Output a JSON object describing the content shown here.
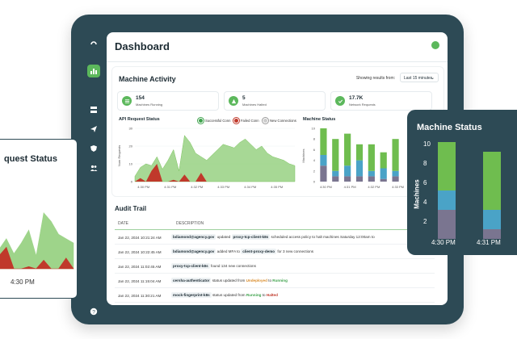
{
  "dashboard": {
    "title": "Dashboard",
    "nav_icons": [
      "logo-icon",
      "chart-icon",
      "server-icon",
      "send-icon",
      "shield-icon",
      "users-icon",
      "help-icon"
    ]
  },
  "machine_activity": {
    "title": "Machine Activity",
    "showing_label": "Showing results from:",
    "time_range": "Last 15 minutes",
    "stats": [
      {
        "value": "154",
        "label": "Machines Running",
        "icon": "list-icon"
      },
      {
        "value": "5",
        "label": "Machines Halted",
        "icon": "warning-icon"
      },
      {
        "value": "17.7K",
        "label": "Network Requests",
        "icon": "check-icon"
      }
    ]
  },
  "api_status": {
    "title": "API Request Status",
    "legend": [
      "Successful Conn",
      "Failed Conn",
      "New Connections"
    ],
    "ylabel": "Num Requests",
    "yticks": [
      "30",
      "20",
      "10",
      "0"
    ],
    "xticks": [
      "4:30 PM",
      "4:31 PM",
      "4:32 PM",
      "4:33 PM",
      "4:34 PM",
      "4:35 PM"
    ]
  },
  "machine_status_small": {
    "title": "Machine Status",
    "ylabel": "Machines",
    "yticks": [
      "10",
      "8",
      "6",
      "4",
      "2",
      "0"
    ],
    "xticks": [
      "4:30 PM",
      "4:31 PM",
      "4:32 PM",
      "4:33 PM"
    ]
  },
  "audit": {
    "title": "Audit Trail",
    "headers": {
      "date": "DATE",
      "description": "DESCRIPTION"
    },
    "rows": [
      {
        "date": "Jan 22, 2024 10:21:24 AM",
        "a": "bdiamond@agency.gov",
        "b": " updated ",
        "c": "proxy-tcp-client-k8s",
        "d": " scheduled access policy to halt machines Saturday 12:00am to"
      },
      {
        "date": "Jan 22, 2024 10:22:45 AM",
        "a": "bdiamond@agency.gov",
        "b": " added MFA to ",
        "c": "client-proxy-demo",
        "d": " for 3 new connections"
      },
      {
        "date": "Jan 22, 2024 11:02:45 AM",
        "a": "proxy-tcp-client-k8s",
        "b": " found 134 new connections",
        "c": "",
        "d": ""
      },
      {
        "date": "Jan 22, 2024 11:15:04 AM",
        "a": "cersha-authenticator",
        "b": " status updated from ",
        "c": "Undeployed",
        "d": " to ",
        "e": "Running"
      },
      {
        "date": "Jan 22, 2024 11:30:21 AM",
        "a": "mock-fingerprint-k8s",
        "b": " status updated from ",
        "c": "Running",
        "d": " to ",
        "e": "Halted"
      }
    ]
  },
  "float_left": {
    "title": "quest Status",
    "xtick": "4:30 PM"
  },
  "float_right": {
    "title": "Machine Status",
    "ylabel": "Machines",
    "yticks": [
      "10",
      "8",
      "6",
      "4",
      "2"
    ],
    "xticks": [
      "4:30 PM",
      "4:31 PM"
    ]
  },
  "chart_data": [
    {
      "type": "area",
      "title": "API Request Status",
      "ylabel": "Num Requests",
      "ylim": [
        0,
        30
      ],
      "series": [
        {
          "name": "Successful Conn",
          "color": "#9ed48a",
          "values": [
            3,
            8,
            10,
            9,
            14,
            7,
            12,
            18,
            6,
            26,
            22,
            16,
            14,
            12,
            15,
            18,
            21,
            20,
            19,
            22,
            24,
            21,
            18,
            20,
            16,
            14,
            13,
            12,
            10,
            9
          ]
        },
        {
          "name": "Failed Conn",
          "color": "#c0392b",
          "values": [
            0,
            2,
            0,
            6,
            10,
            0,
            0,
            1,
            0,
            4,
            0,
            0,
            5,
            0,
            0,
            0,
            0,
            0,
            0,
            0,
            0,
            0,
            0,
            0,
            0,
            0,
            0,
            0,
            0,
            0
          ]
        }
      ]
    },
    {
      "type": "bar",
      "title": "Machine Status",
      "ylabel": "Machines",
      "ylim": [
        0,
        10
      ],
      "categories": [
        "4:30 PM",
        "",
        "4:31 PM",
        "",
        "4:32 PM",
        "",
        "4:33 PM"
      ],
      "series": [
        {
          "color": "#7a7590",
          "values": [
            3,
            1,
            1,
            1,
            1,
            0.5,
            1
          ]
        },
        {
          "color": "#4aa3c7",
          "values": [
            2,
            1,
            2,
            3,
            1,
            2,
            1
          ]
        },
        {
          "color": "#6fbd4f",
          "values": [
            5,
            6,
            6,
            3,
            5,
            3,
            6
          ]
        }
      ]
    }
  ]
}
